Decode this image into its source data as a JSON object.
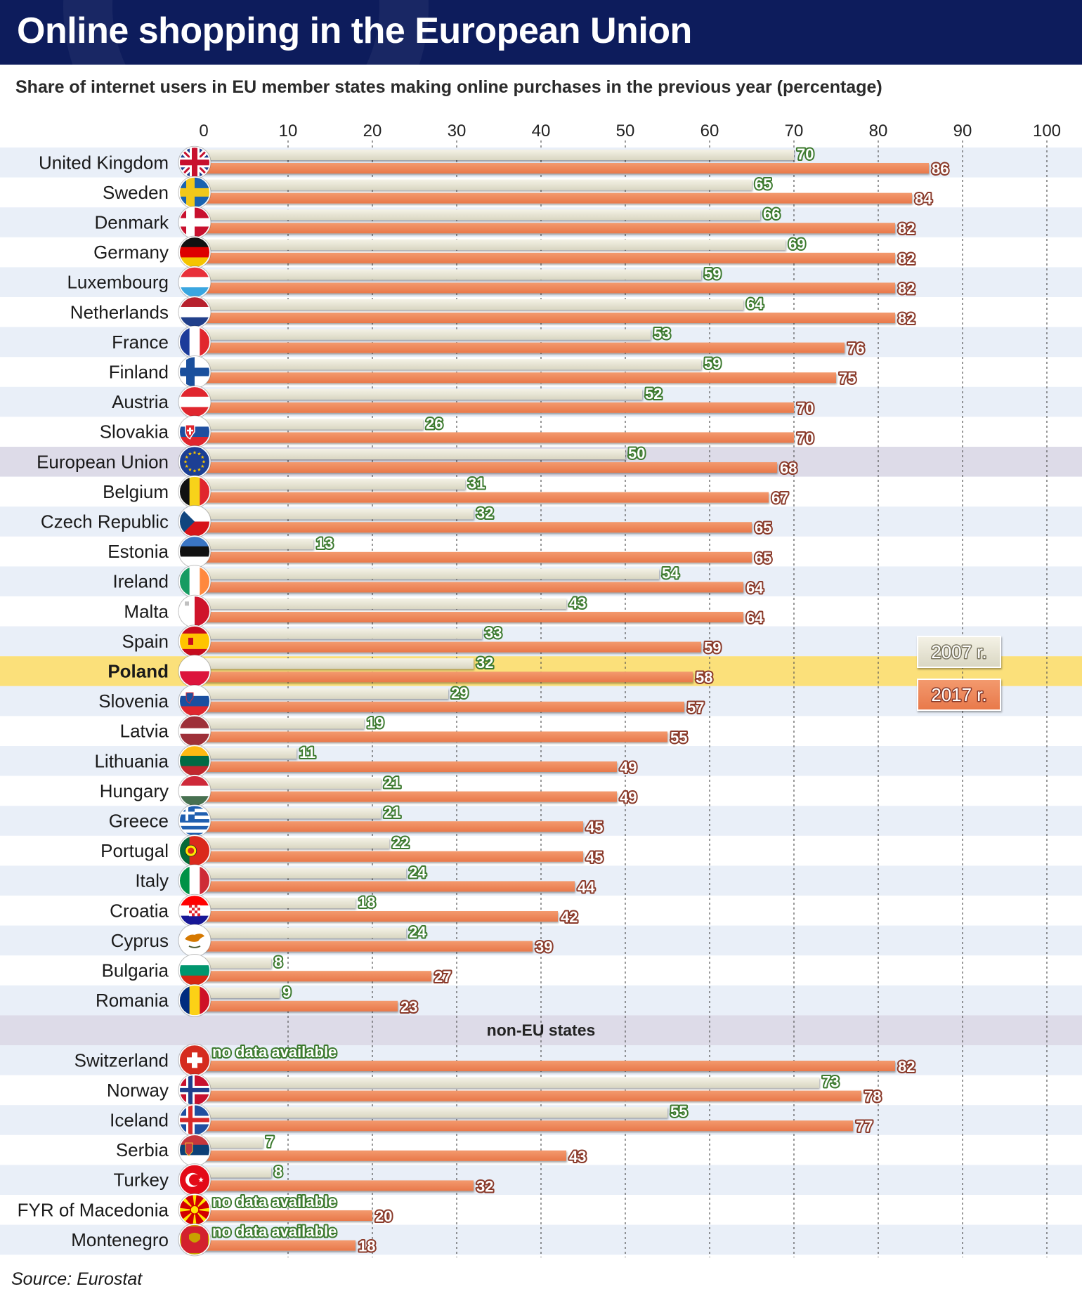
{
  "title": "Online shopping in the European Union",
  "subtitle": "Share of internet users in EU member states making online purchases in the previous year (percentage)",
  "source": "Source: Eurostat",
  "colors": {
    "series_2007": "#d9d6c2",
    "series_2017": "#e8784a",
    "row_alt": "#e9eff8",
    "eu_row": "#dddbe8",
    "poland_row": "#fbe07a",
    "title_bar": "#0d1c5c",
    "label_2007": "#ffffff",
    "label_2007_outline": "#3c7a2e",
    "label_2017": "#ffffff",
    "label_2017_outline": "#8a3a2a"
  },
  "chart_data": {
    "type": "bar",
    "orientation": "horizontal",
    "xlim": [
      0,
      100
    ],
    "xticks": [
      "0",
      "10",
      "20",
      "30",
      "40",
      "50",
      "60",
      "70",
      "80",
      "90",
      "100"
    ],
    "grid": "vertical dashed",
    "legend_position": "right",
    "series": [
      {
        "name": "2007 r.",
        "color": "#d9d6c2"
      },
      {
        "name": "2017 r.",
        "color": "#e8784a"
      }
    ],
    "no_data_label": "no data available",
    "groups": [
      {
        "label": "",
        "rows": [
          {
            "name": "United Kingdom",
            "flag": "uk-flag-icon",
            "v2007": 70,
            "v2017": 86
          },
          {
            "name": "Sweden",
            "flag": "sweden-flag-icon",
            "v2007": 65,
            "v2017": 84
          },
          {
            "name": "Denmark",
            "flag": "denmark-flag-icon",
            "v2007": 66,
            "v2017": 82
          },
          {
            "name": "Germany",
            "flag": "germany-flag-icon",
            "v2007": 69,
            "v2017": 82
          },
          {
            "name": "Luxembourg",
            "flag": "luxembourg-flag-icon",
            "v2007": 59,
            "v2017": 82
          },
          {
            "name": "Netherlands",
            "flag": "netherlands-flag-icon",
            "v2007": 64,
            "v2017": 82
          },
          {
            "name": "France",
            "flag": "france-flag-icon",
            "v2007": 53,
            "v2017": 76
          },
          {
            "name": "Finland",
            "flag": "finland-flag-icon",
            "v2007": 59,
            "v2017": 75
          },
          {
            "name": "Austria",
            "flag": "austria-flag-icon",
            "v2007": 52,
            "v2017": 70
          },
          {
            "name": "Slovakia",
            "flag": "slovakia-flag-icon",
            "v2007": 26,
            "v2017": 70
          },
          {
            "name": "European Union",
            "flag": "eu-flag-icon",
            "v2007": 50,
            "v2017": 68,
            "highlight": "eu"
          },
          {
            "name": "Belgium",
            "flag": "belgium-flag-icon",
            "v2007": 31,
            "v2017": 67
          },
          {
            "name": "Czech Republic",
            "flag": "czech-flag-icon",
            "v2007": 32,
            "v2017": 65
          },
          {
            "name": "Estonia",
            "flag": "estonia-flag-icon",
            "v2007": 13,
            "v2017": 65
          },
          {
            "name": "Ireland",
            "flag": "ireland-flag-icon",
            "v2007": 54,
            "v2017": 64
          },
          {
            "name": "Malta",
            "flag": "malta-flag-icon",
            "v2007": 43,
            "v2017": 64
          },
          {
            "name": "Spain",
            "flag": "spain-flag-icon",
            "v2007": 33,
            "v2017": 59
          },
          {
            "name": "Poland",
            "flag": "poland-flag-icon",
            "v2007": 32,
            "v2017": 58,
            "highlight": "poland"
          },
          {
            "name": "Slovenia",
            "flag": "slovenia-flag-icon",
            "v2007": 29,
            "v2017": 57
          },
          {
            "name": "Latvia",
            "flag": "latvia-flag-icon",
            "v2007": 19,
            "v2017": 55
          },
          {
            "name": "Lithuania",
            "flag": "lithuania-flag-icon",
            "v2007": 11,
            "v2017": 49
          },
          {
            "name": "Hungary",
            "flag": "hungary-flag-icon",
            "v2007": 21,
            "v2017": 49
          },
          {
            "name": "Greece",
            "flag": "greece-flag-icon",
            "v2007": 21,
            "v2017": 45
          },
          {
            "name": "Portugal",
            "flag": "portugal-flag-icon",
            "v2007": 22,
            "v2017": 45
          },
          {
            "name": "Italy",
            "flag": "italy-flag-icon",
            "v2007": 24,
            "v2017": 44
          },
          {
            "name": "Croatia",
            "flag": "croatia-flag-icon",
            "v2007": 18,
            "v2017": 42
          },
          {
            "name": "Cyprus",
            "flag": "cyprus-flag-icon",
            "v2007": 24,
            "v2017": 39
          },
          {
            "name": "Bulgaria",
            "flag": "bulgaria-flag-icon",
            "v2007": 8,
            "v2017": 27
          },
          {
            "name": "Romania",
            "flag": "romania-flag-icon",
            "v2007": 9,
            "v2017": 23
          }
        ]
      },
      {
        "label": "non-EU states",
        "rows": [
          {
            "name": "Switzerland",
            "flag": "switzerland-flag-icon",
            "v2007": null,
            "v2017": 82
          },
          {
            "name": "Norway",
            "flag": "norway-flag-icon",
            "v2007": 73,
            "v2017": 78
          },
          {
            "name": "Iceland",
            "flag": "iceland-flag-icon",
            "v2007": 55,
            "v2017": 77
          },
          {
            "name": "Serbia",
            "flag": "serbia-flag-icon",
            "v2007": 7,
            "v2017": 43
          },
          {
            "name": "Turkey",
            "flag": "turkey-flag-icon",
            "v2007": 8,
            "v2017": 32
          },
          {
            "name": "FYR of Macedonia",
            "flag": "macedonia-flag-icon",
            "v2007": null,
            "v2017": 20
          },
          {
            "name": "Montenegro",
            "flag": "montenegro-flag-icon",
            "v2007": null,
            "v2017": 18
          }
        ]
      }
    ]
  }
}
